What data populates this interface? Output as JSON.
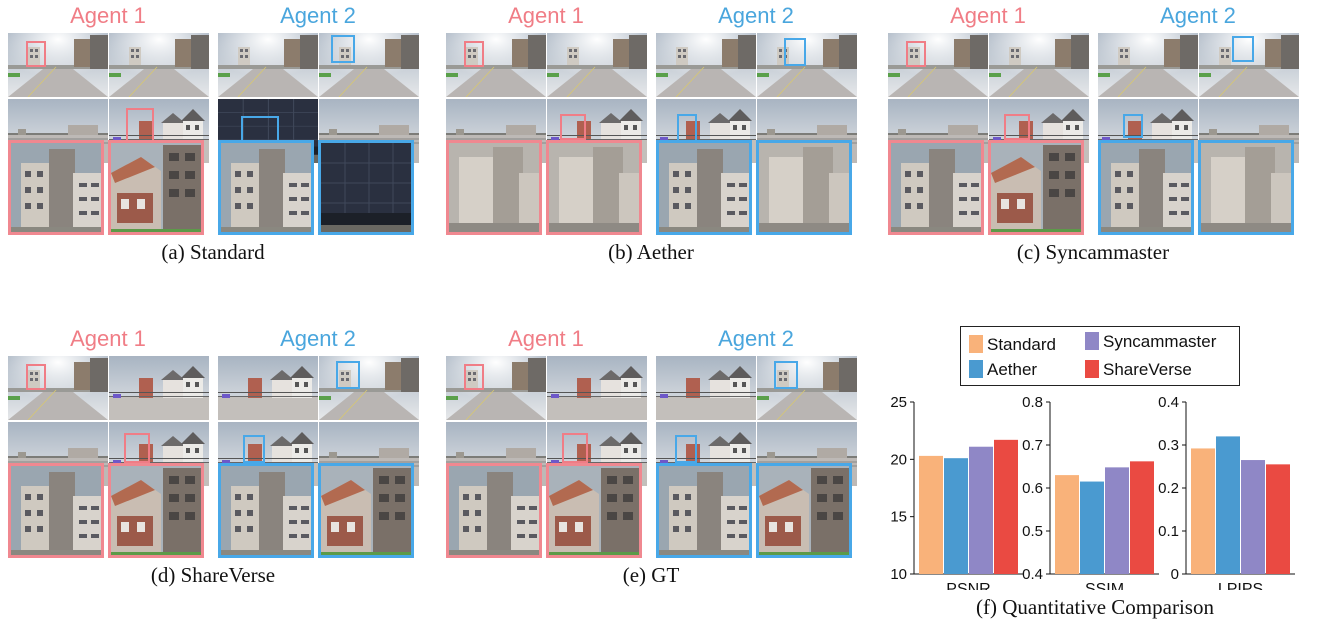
{
  "agents": {
    "agent1_label": "Agent 1",
    "agent2_label": "Agent 2"
  },
  "colors": {
    "agent1": "#f07d86",
    "agent2": "#4aa6dd",
    "standard": "#f9b27a",
    "aether": "#4a9ad0",
    "syncammaster": "#8f87c6",
    "shareverse": "#ea4a42"
  },
  "panels": [
    {
      "id": "a",
      "caption": "(a) Standard",
      "crop_quality": "blurry"
    },
    {
      "id": "b",
      "caption": "(b) Aether",
      "crop_quality": "distorted"
    },
    {
      "id": "c",
      "caption": "(c) Syncammaster",
      "crop_quality": "blurry"
    },
    {
      "id": "d",
      "caption": "(d) ShareVerse",
      "crop_quality": "sharp"
    },
    {
      "id": "e",
      "caption": "(e) GT",
      "crop_quality": "sharp"
    }
  ],
  "comparison": {
    "caption": "(f) Quantitative Comparison",
    "legend": [
      "Standard",
      "Syncammaster",
      "Aether",
      "ShareVerse"
    ]
  },
  "chart_data": [
    {
      "type": "bar",
      "xlabel": "PSNR",
      "ylim": [
        10,
        25
      ],
      "yticks": [
        "10",
        "15",
        "20",
        "25"
      ],
      "series": [
        {
          "name": "Standard",
          "values": [
            20.3
          ]
        },
        {
          "name": "Aether",
          "values": [
            20.1
          ]
        },
        {
          "name": "Syncammaster",
          "values": [
            21.1
          ]
        },
        {
          "name": "ShareVerse",
          "values": [
            21.7
          ]
        }
      ]
    },
    {
      "type": "bar",
      "xlabel": "SSIM",
      "ylim": [
        0.4,
        0.8
      ],
      "yticks": [
        "0.4",
        "0.5",
        "0.6",
        "0.7",
        "0.8"
      ],
      "series": [
        {
          "name": "Standard",
          "values": [
            0.63
          ]
        },
        {
          "name": "Aether",
          "values": [
            0.615
          ]
        },
        {
          "name": "Syncammaster",
          "values": [
            0.648
          ]
        },
        {
          "name": "ShareVerse",
          "values": [
            0.662
          ]
        }
      ]
    },
    {
      "type": "bar",
      "xlabel": "LPIPS",
      "ylim": [
        0,
        0.4
      ],
      "yticks": [
        "0",
        "0.1",
        "0.2",
        "0.3",
        "0.4"
      ],
      "series": [
        {
          "name": "Standard",
          "values": [
            0.292
          ]
        },
        {
          "name": "Aether",
          "values": [
            0.32
          ]
        },
        {
          "name": "Syncammaster",
          "values": [
            0.265
          ]
        },
        {
          "name": "ShareVerse",
          "values": [
            0.255
          ]
        }
      ]
    }
  ]
}
